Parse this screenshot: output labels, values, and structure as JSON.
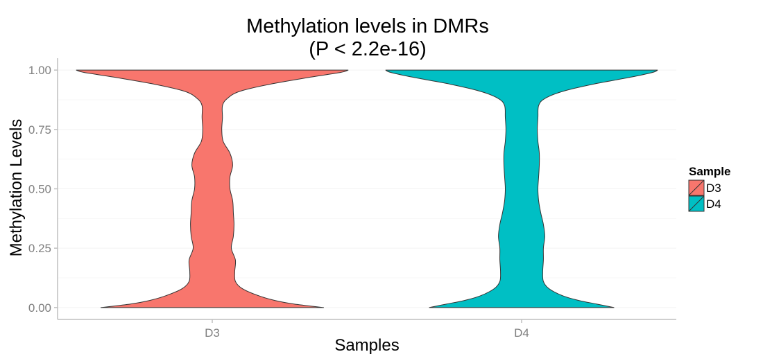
{
  "chart_data": {
    "type": "violin",
    "title": [
      "Methylation levels in DMRs",
      "(P < 2.2e-16)"
    ],
    "xlabel": "Samples",
    "ylabel": "Methylation Levels",
    "ylim": [
      -0.05,
      1.05
    ],
    "yticks": [
      0.0,
      0.25,
      0.5,
      0.75,
      1.0
    ],
    "ytick_labels": [
      "0.00",
      "0.25",
      "0.50",
      "0.75",
      "1.00"
    ],
    "categories": [
      "D3",
      "D4"
    ],
    "grid": true,
    "legend": {
      "title": "Sample",
      "position": "right",
      "entries": [
        "D3",
        "D4"
      ]
    },
    "series": [
      {
        "name": "D3",
        "color": "#F8766D",
        "density_profile": [
          [
            0.0,
            0.82
          ],
          [
            0.015,
            0.6
          ],
          [
            0.03,
            0.46
          ],
          [
            0.05,
            0.34
          ],
          [
            0.08,
            0.22
          ],
          [
            0.11,
            0.17
          ],
          [
            0.15,
            0.165
          ],
          [
            0.2,
            0.17
          ],
          [
            0.25,
            0.14
          ],
          [
            0.3,
            0.155
          ],
          [
            0.35,
            0.16
          ],
          [
            0.4,
            0.155
          ],
          [
            0.45,
            0.15
          ],
          [
            0.5,
            0.13
          ],
          [
            0.55,
            0.13
          ],
          [
            0.6,
            0.15
          ],
          [
            0.65,
            0.13
          ],
          [
            0.7,
            0.08
          ],
          [
            0.75,
            0.07
          ],
          [
            0.8,
            0.075
          ],
          [
            0.85,
            0.075
          ],
          [
            0.88,
            0.11
          ],
          [
            0.91,
            0.2
          ],
          [
            0.94,
            0.42
          ],
          [
            0.97,
            0.72
          ],
          [
            0.99,
            0.94
          ],
          [
            1.0,
            1.0
          ]
        ]
      },
      {
        "name": "D4",
        "color": "#00BFC4",
        "density_profile": [
          [
            0.0,
            0.68
          ],
          [
            0.015,
            0.55
          ],
          [
            0.03,
            0.42
          ],
          [
            0.05,
            0.3
          ],
          [
            0.08,
            0.2
          ],
          [
            0.11,
            0.16
          ],
          [
            0.15,
            0.155
          ],
          [
            0.2,
            0.16
          ],
          [
            0.25,
            0.16
          ],
          [
            0.3,
            0.17
          ],
          [
            0.35,
            0.16
          ],
          [
            0.4,
            0.14
          ],
          [
            0.45,
            0.125
          ],
          [
            0.5,
            0.12
          ],
          [
            0.55,
            0.125
          ],
          [
            0.6,
            0.13
          ],
          [
            0.65,
            0.13
          ],
          [
            0.7,
            0.12
          ],
          [
            0.75,
            0.115
          ],
          [
            0.8,
            0.12
          ],
          [
            0.85,
            0.125
          ],
          [
            0.88,
            0.17
          ],
          [
            0.91,
            0.3
          ],
          [
            0.94,
            0.52
          ],
          [
            0.97,
            0.8
          ],
          [
            0.99,
            0.96
          ],
          [
            1.0,
            1.0
          ]
        ]
      }
    ]
  }
}
